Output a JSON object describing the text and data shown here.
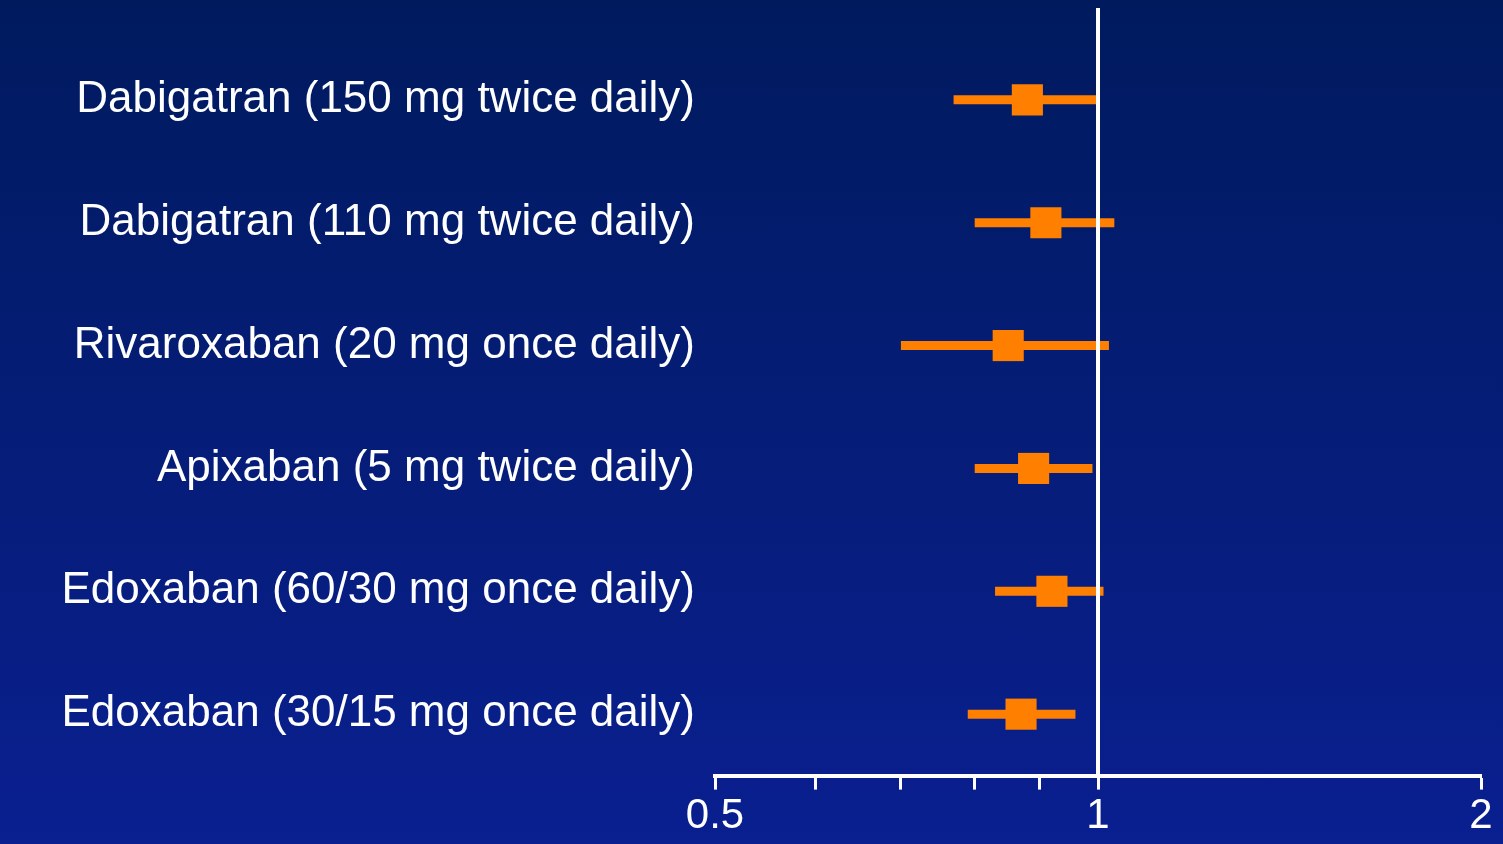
{
  "chart_data": {
    "type": "scatter",
    "orientation": "horizontal",
    "categories": [
      "Dabigatran (150 mg twice daily)",
      "Dabigatran (110 mg twice daily)",
      "Rivaroxaban (20 mg once daily)",
      "Apixaban (5 mg twice daily)",
      "Edoxaban (60/30 mg once daily)",
      "Edoxaban (30/15 mg once daily)"
    ],
    "series": [
      {
        "color": "#ff7f00",
        "values": [
          0.88,
          0.91,
          0.85,
          0.89,
          0.92,
          0.87
        ],
        "errors": [
          [
            0.77,
            1.0
          ],
          [
            0.8,
            1.03
          ],
          [
            0.7,
            1.02
          ],
          [
            0.8,
            0.99
          ],
          [
            0.83,
            1.01
          ],
          [
            0.79,
            0.96
          ]
        ]
      }
    ],
    "marker": "square",
    "log": "x",
    "xlim": [
      0.5,
      2
    ],
    "xticks": [
      0.5,
      {
        "value": 0.6,
        "label": null
      },
      {
        "value": 0.7,
        "label": null
      },
      {
        "value": 0.8,
        "label": null
      },
      {
        "value": 0.9,
        "label": null
      },
      1,
      2
    ],
    "ref_lines": [
      {
        "axis": "x",
        "value": 1,
        "color": "#ffffff"
      }
    ],
    "grid": false,
    "legend": false
  }
}
